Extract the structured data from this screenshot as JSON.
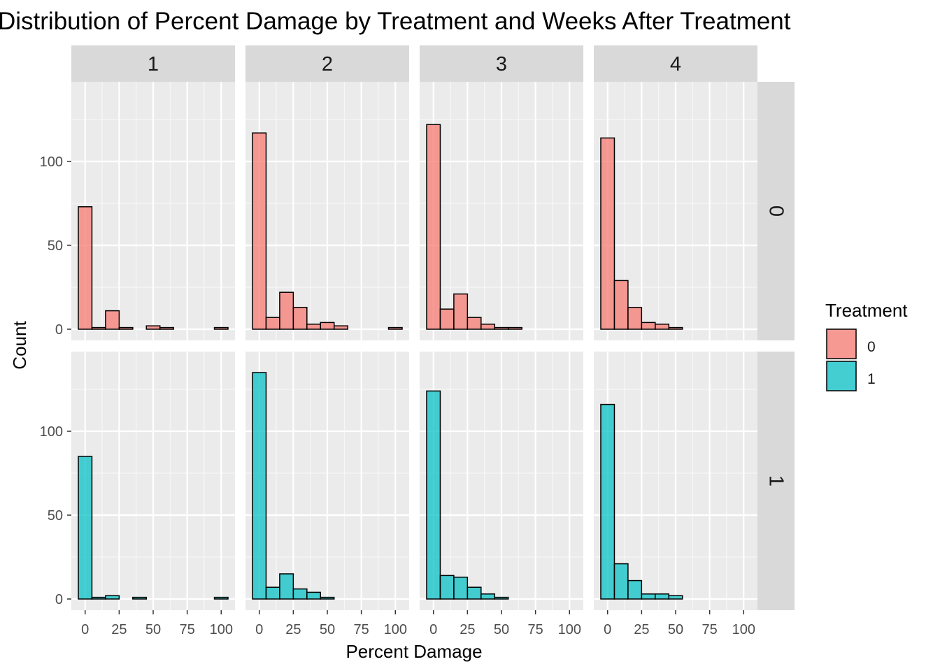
{
  "chart_data": {
    "type": "bar",
    "title": "Distribution of Percent Damage by Treatment and Weeks After Treatment",
    "xlabel": "Percent Damage",
    "ylabel": "Count",
    "xlim": [
      -5,
      105
    ],
    "ylim": [
      0,
      140
    ],
    "x_ticks": [
      0,
      25,
      50,
      75,
      100
    ],
    "y_ticks": [
      0,
      50,
      100
    ],
    "bin_width": 10,
    "bin_starts": [
      -5,
      5,
      15,
      25,
      35,
      45,
      55,
      65,
      75,
      85,
      95
    ],
    "facet_columns": [
      "1",
      "2",
      "3",
      "4"
    ],
    "facet_rows": [
      "0",
      "1"
    ],
    "legend": {
      "title": "Treatment",
      "entries": [
        {
          "label": "0",
          "color": "#F8766D"
        },
        {
          "label": "1",
          "color": "#00BFC4"
        }
      ]
    },
    "panels": [
      {
        "row": "0",
        "col": "1",
        "counts": [
          73,
          1,
          11,
          1,
          0,
          2,
          1,
          0,
          0,
          0,
          1
        ]
      },
      {
        "row": "0",
        "col": "2",
        "counts": [
          117,
          7,
          22,
          13,
          3,
          4,
          2,
          0,
          0,
          0,
          1
        ]
      },
      {
        "row": "0",
        "col": "3",
        "counts": [
          122,
          12,
          21,
          7,
          3,
          1,
          1,
          0,
          0,
          0,
          0
        ]
      },
      {
        "row": "0",
        "col": "4",
        "counts": [
          114,
          29,
          13,
          4,
          3,
          1,
          0,
          0,
          0,
          0,
          0
        ]
      },
      {
        "row": "1",
        "col": "1",
        "counts": [
          85,
          1,
          2,
          0,
          1,
          0,
          0,
          0,
          0,
          0,
          1
        ]
      },
      {
        "row": "1",
        "col": "2",
        "counts": [
          135,
          7,
          15,
          6,
          4,
          1,
          0,
          0,
          0,
          0,
          0
        ]
      },
      {
        "row": "1",
        "col": "3",
        "counts": [
          124,
          14,
          13,
          7,
          3,
          1,
          0,
          0,
          0,
          0,
          0
        ]
      },
      {
        "row": "1",
        "col": "4",
        "counts": [
          116,
          21,
          11,
          3,
          3,
          2,
          0,
          0,
          0,
          0,
          0
        ]
      }
    ]
  }
}
